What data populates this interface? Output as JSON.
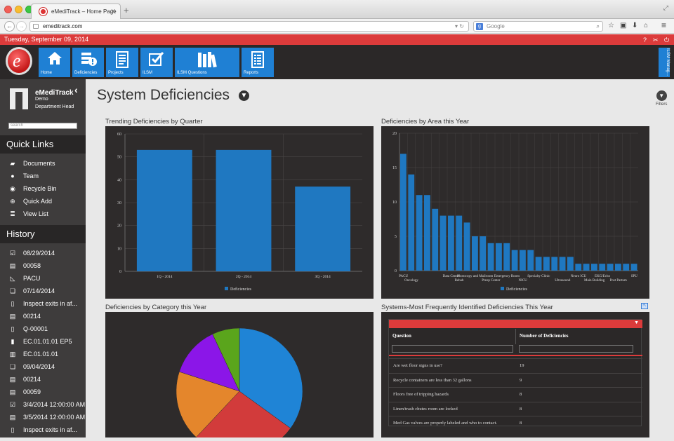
{
  "browser": {
    "tab_title": "eMediTrack – Home Page",
    "url": "emeditrack.com",
    "search_engine": "Google",
    "search_placeholder": "Google"
  },
  "datebar": {
    "date": "Tuesday, September 09, 2014"
  },
  "nav": {
    "tiles": [
      {
        "label": "Home",
        "icon": "home-icon"
      },
      {
        "label": "Deficiencies",
        "icon": "deficiencies-icon"
      },
      {
        "label": "Projects",
        "icon": "projects-icon"
      },
      {
        "label": "ILSM",
        "icon": "ilsm-icon"
      },
      {
        "label": "ILSM Questions",
        "icon": "books-icon"
      },
      {
        "label": "Reports",
        "icon": "reports-icon"
      }
    ],
    "side_tab": "ILSM Manag..."
  },
  "user": {
    "name": "eMediTrack",
    "org": "Demo",
    "role": "Department Head",
    "search_placeholder": "search"
  },
  "quick_links": {
    "title": "Quick Links",
    "items": [
      {
        "label": "Documents",
        "icon": "folder-icon"
      },
      {
        "label": "Team",
        "icon": "person-icon"
      },
      {
        "label": "Recycle Bin",
        "icon": "recycle-icon"
      },
      {
        "label": "Quick Add",
        "icon": "plus-icon"
      },
      {
        "label": "View List",
        "icon": "list-icon"
      }
    ]
  },
  "history": {
    "title": "History",
    "items": [
      "08/29/2014",
      "00058",
      "PACU",
      "07/14/2014",
      "Inspect exits in af...",
      "00214",
      "Q-00001",
      "EC.01.01.01 EP5",
      "EC.01.01.01",
      "09/04/2014",
      "00214",
      "00059",
      "3/4/2014 12:00:00 AM",
      "3/5/2014 12:00:00 AM",
      "Inspect exits in af..."
    ]
  },
  "page": {
    "title": "System Deficiencies",
    "filters_label": "Filters"
  },
  "panels": {
    "quarter_title": "Trending Deficiencies by Quarter",
    "area_title": "Deficiencies by Area this Year",
    "category_title": "Deficiencies by Category this Year",
    "systems_title": "Systems-Most Frequently Identified Deficiencies This Year"
  },
  "chart_data": [
    {
      "type": "bar",
      "title": "Trending Deficiencies by Quarter",
      "categories": [
        "1Q - 2014",
        "2Q - 2014",
        "3Q - 2014"
      ],
      "values": [
        53,
        53,
        37
      ],
      "ylim": [
        0,
        60
      ],
      "yticks": [
        0,
        10,
        20,
        30,
        40,
        50,
        60
      ],
      "legend": "Deficiencies",
      "color": "#1f78c1"
    },
    {
      "type": "bar",
      "title": "Deficiencies by Area this Year",
      "values": [
        17,
        14,
        11,
        11,
        9,
        8,
        8,
        8,
        7,
        5,
        5,
        4,
        4,
        4,
        3,
        3,
        3,
        2,
        2,
        2,
        2,
        2,
        1,
        1,
        1,
        1,
        1,
        1,
        1,
        1
      ],
      "labels_row1": [
        "PACU",
        "Data Center",
        "Photocopy and Mailroom",
        "Emergency Room",
        "Specialty Clinic",
        "Neuro ICU",
        "EKG/Echo",
        "SPU"
      ],
      "labels_row2": [
        "Oncology",
        "Rehab",
        "Preop Center",
        "NICU",
        "Ultrasound",
        "Main Building",
        "Post Partum"
      ],
      "ylim": [
        0,
        20
      ],
      "yticks": [
        0,
        5,
        10,
        15,
        20
      ],
      "legend": "Deficiencies",
      "color": "#1f78c1"
    },
    {
      "type": "pie",
      "title": "Deficiencies by Category this Year",
      "values": [
        35,
        27,
        18,
        13,
        7
      ],
      "colors": [
        "#1f84d6",
        "#d23b3b",
        "#e4862c",
        "#8b16e8",
        "#5aa51c"
      ]
    }
  ],
  "table": {
    "headers": [
      "Question",
      "Number of Deficiencies"
    ],
    "rows": [
      {
        "q": "Are wet floor signs in use?",
        "n": "19"
      },
      {
        "q": "Recycle containers are less than 32 gallons",
        "n": "9"
      },
      {
        "q": "Floors free of tripping hazards",
        "n": "8"
      },
      {
        "q": "Linen/trash chutes room are locked",
        "n": "8"
      },
      {
        "q": "Med Gas valves are properly labeled and who to contact.",
        "n": "8"
      }
    ]
  }
}
